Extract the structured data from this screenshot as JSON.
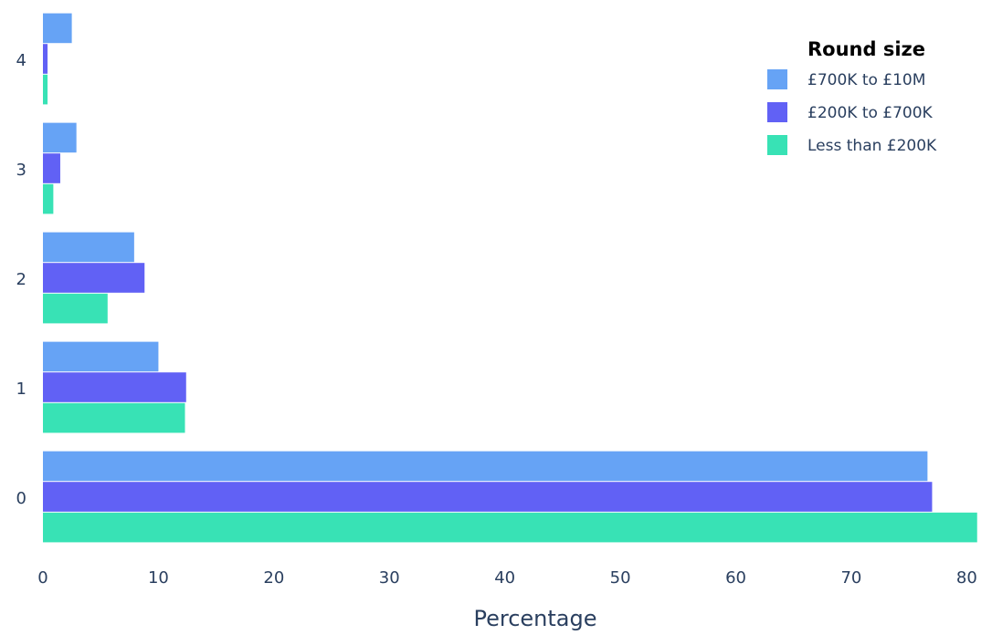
{
  "chart_data": {
    "type": "bar",
    "orientation": "horizontal",
    "categories": [
      "0",
      "1",
      "2",
      "3",
      "4"
    ],
    "series": [
      {
        "name": "£700K to £10M",
        "color": "#66a3f5",
        "values": [
          76.6,
          10.0,
          7.9,
          2.9,
          2.5
        ]
      },
      {
        "name": "£200K to £700K",
        "color": "#6161f5",
        "values": [
          77.0,
          12.4,
          8.8,
          1.5,
          0.4
        ]
      },
      {
        "name": "Less than £200K",
        "color": "#38e2b5",
        "values": [
          80.9,
          12.3,
          5.6,
          0.9,
          0.4
        ]
      }
    ],
    "title": "",
    "xlabel": "Percentage",
    "ylabel": "",
    "xlim": [
      0,
      81
    ],
    "x_ticks": [
      "0",
      "10",
      "20",
      "30",
      "40",
      "50",
      "60",
      "70",
      "80"
    ],
    "legend_title": "Round size",
    "legend_position": "top-right",
    "grid": false
  }
}
